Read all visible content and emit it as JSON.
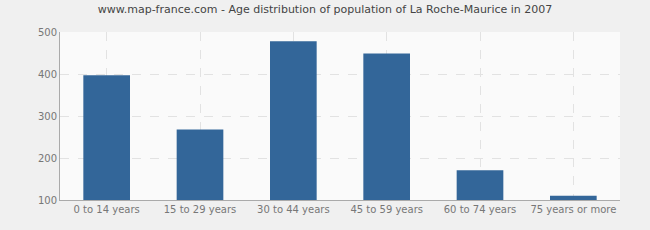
{
  "chart_data": {
    "type": "bar",
    "title": "www.map-france.com - Age distribution of population of La Roche-Maurice in 2007",
    "categories": [
      "0 to 14 years",
      "15 to 29 years",
      "30 to 44 years",
      "45 to 59 years",
      "60 to 74 years",
      "75 years or more"
    ],
    "values": [
      397,
      268,
      478,
      449,
      171,
      110
    ],
    "color": "#336699",
    "ylim": [
      100,
      500
    ],
    "yticks": [
      100,
      200,
      300,
      400,
      500
    ],
    "grid": true
  }
}
